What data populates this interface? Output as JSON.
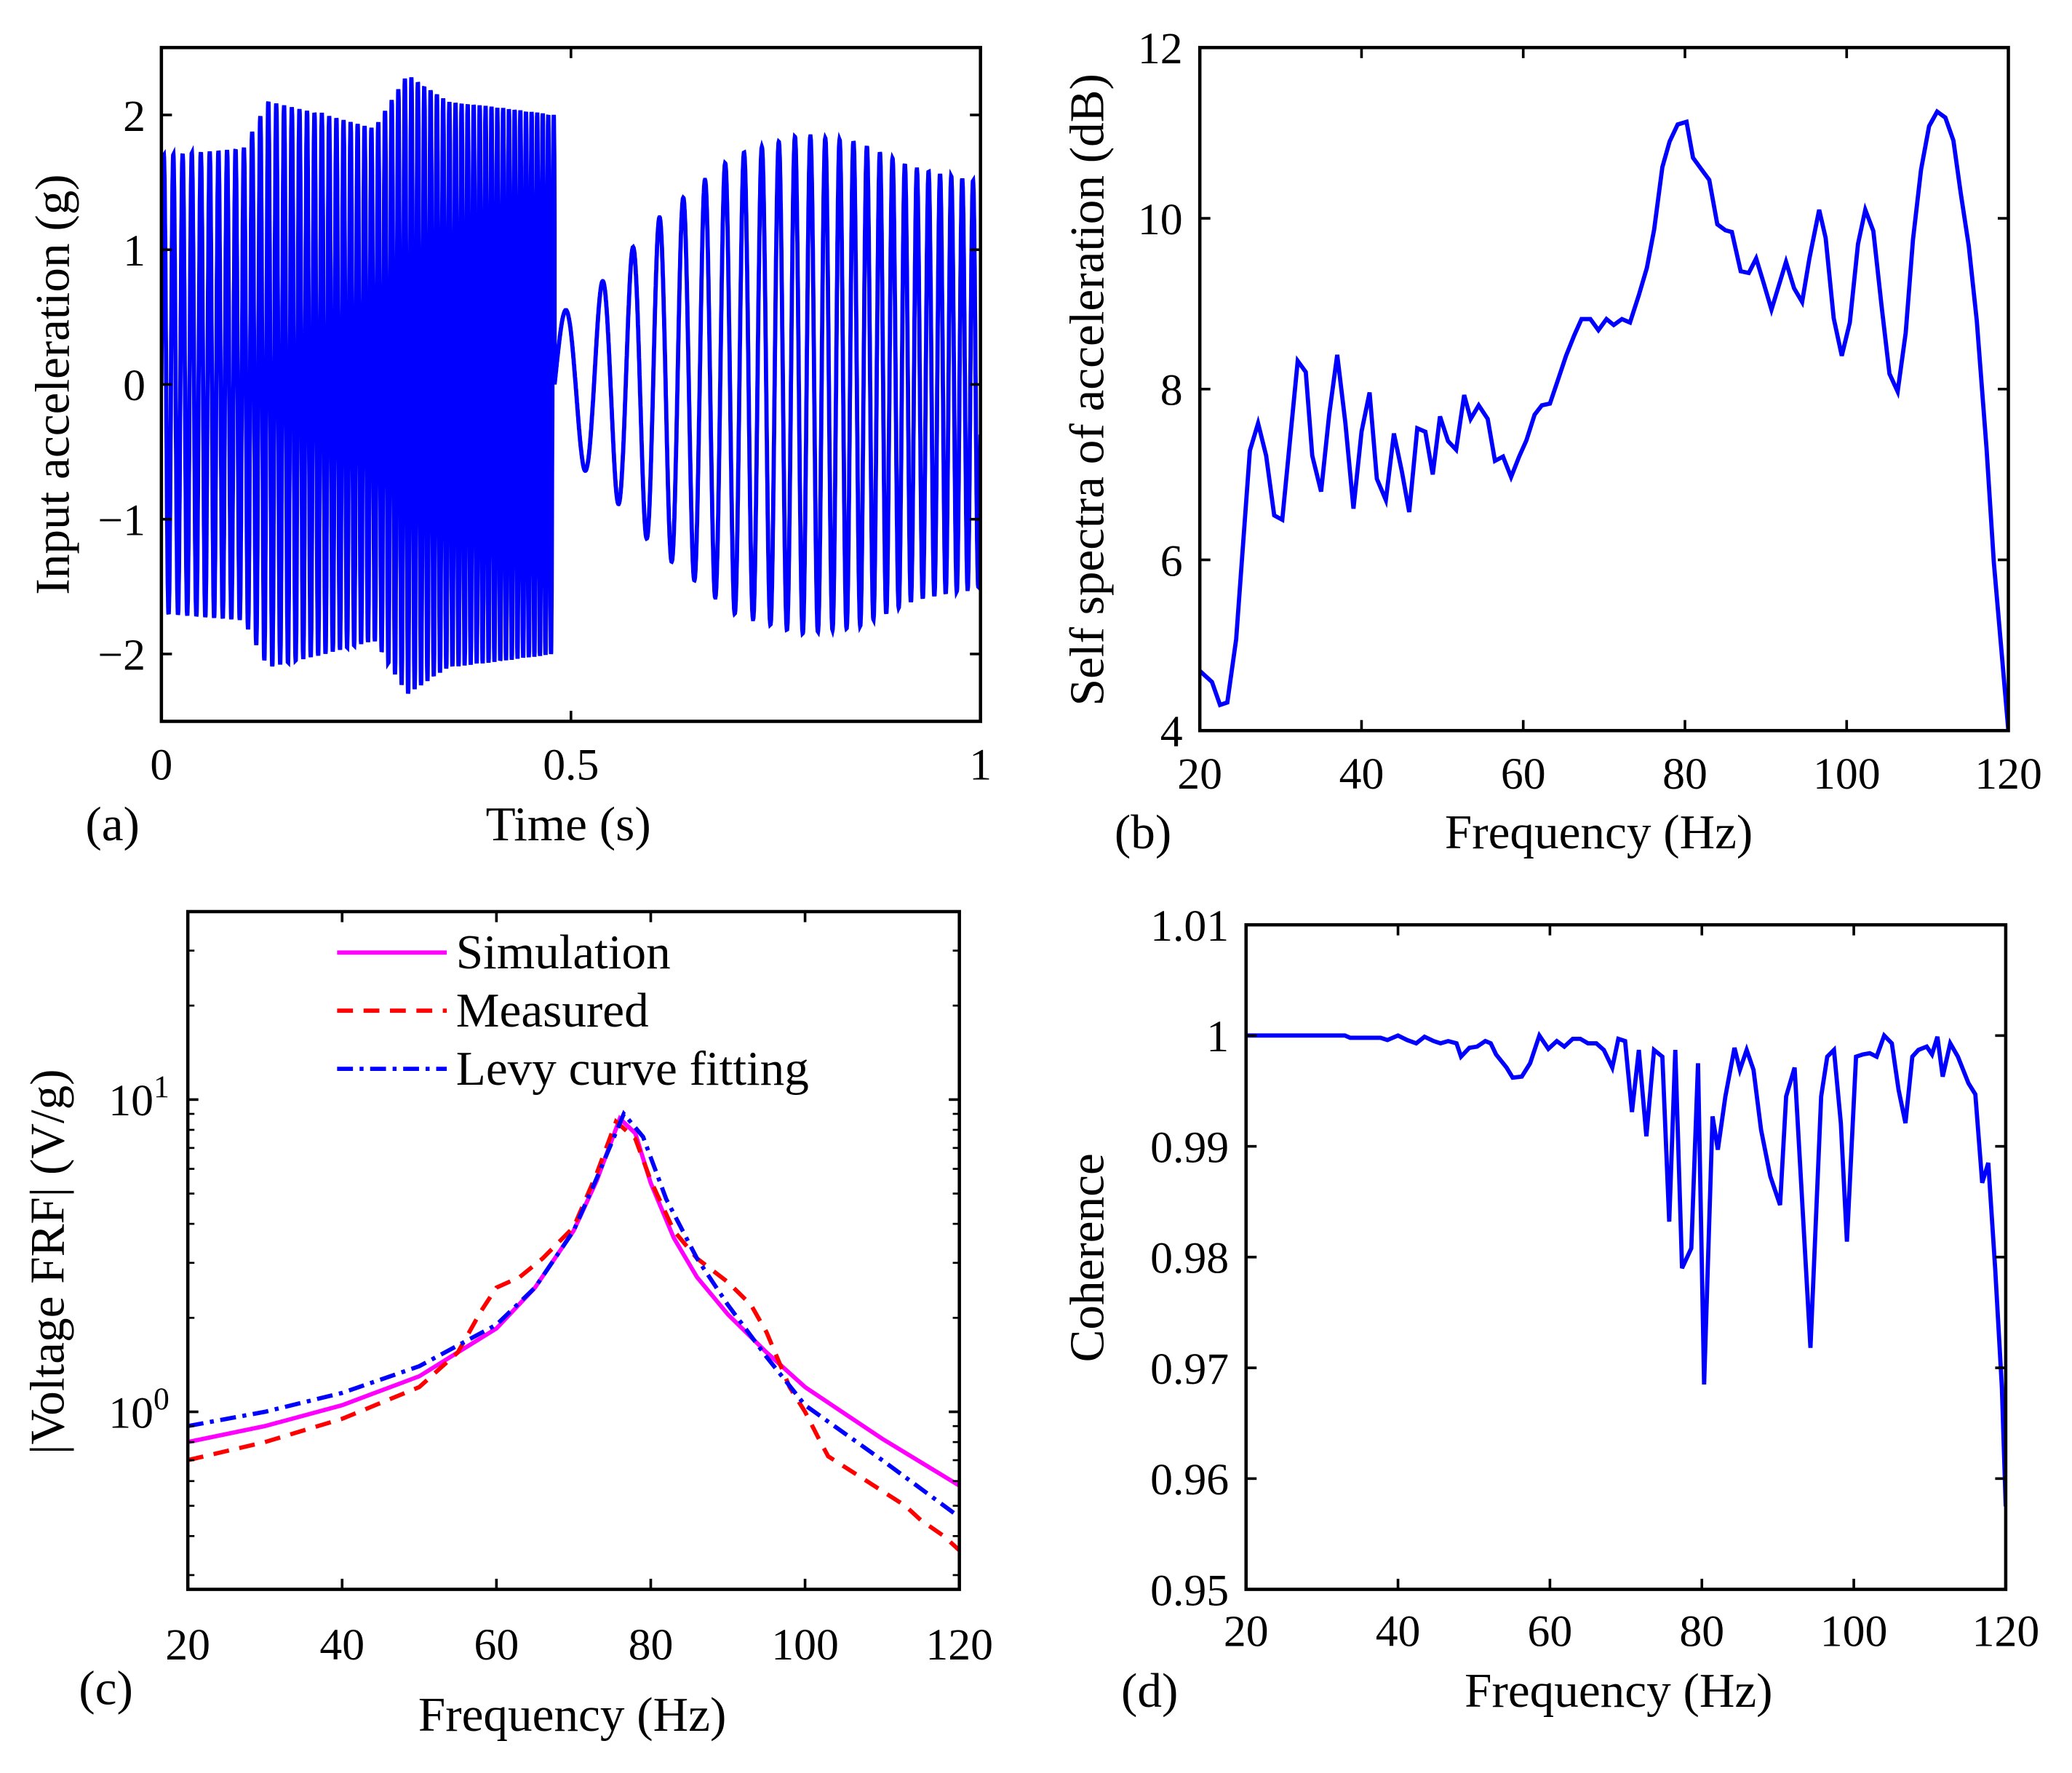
{
  "chart_data": [
    {
      "id": "a",
      "type": "line",
      "panel_label": "(a)",
      "xlabel": "Time (s)",
      "ylabel": "Input acceleration (g)",
      "xlim": [
        0,
        1
      ],
      "ylim": [
        -2.5,
        2.5
      ],
      "xticks": [
        0,
        0.5,
        1
      ],
      "xtick_labels": [
        "0",
        "0.5",
        "1"
      ],
      "yticks": [
        -2,
        -1,
        0,
        1,
        2
      ],
      "ytick_labels": [
        "−2",
        "−1",
        "0",
        "1",
        "2"
      ],
      "series": [
        {
          "name": "input acceleration",
          "color": "#0000ff",
          "segments": [
            {
              "t": [
                0,
                0.48
              ],
              "freq_hz": [
                85,
                150
              ],
              "envelope_t": [
                0,
                0.1,
                0.13,
                0.2,
                0.26,
                0.3,
                0.35,
                0.42,
                0.48
              ],
              "envelope_g": [
                1.7,
                1.75,
                2.1,
                2.0,
                1.9,
                2.3,
                2.1,
                2.05,
                2.0
              ]
            },
            {
              "t": [
                0.48,
                1
              ],
              "freq_hz": [
                18,
                78
              ],
              "envelope_t": [
                0.48,
                0.52,
                0.56,
                0.6,
                0.65,
                0.7,
                0.78,
                0.85,
                0.92,
                1
              ],
              "envelope_g": [
                0.5,
                0.65,
                0.9,
                1.2,
                1.45,
                1.7,
                1.85,
                1.8,
                1.6,
                1.5
              ]
            }
          ]
        }
      ]
    },
    {
      "id": "b",
      "type": "line",
      "panel_label": "(b)",
      "xlabel": "Frequency (Hz)",
      "ylabel": "Self spectra of acceleration (dB)",
      "xlim": [
        20,
        120
      ],
      "ylim": [
        4,
        12
      ],
      "xticks": [
        20,
        40,
        60,
        80,
        100,
        120
      ],
      "xtick_labels": [
        "20",
        "40",
        "60",
        "80",
        "100",
        "120"
      ],
      "yticks": [
        4,
        6,
        8,
        10,
        12
      ],
      "ytick_labels": [
        "4",
        "6",
        "8",
        "10",
        "12"
      ],
      "series": [
        {
          "name": "self spectra",
          "color": "#0000ff",
          "x": [
            20,
            21.5,
            22.5,
            23.4,
            24.5,
            26.2,
            27.2,
            28.2,
            29.2,
            30.2,
            32.1,
            33.1,
            33.9,
            35,
            36,
            37,
            38,
            39,
            40,
            41,
            41.9,
            43,
            44,
            45,
            45.9,
            46.9,
            47.9,
            48.8,
            49.7,
            50.7,
            51.7,
            52.7,
            53.5,
            54.5,
            55.6,
            56.5,
            57.5,
            58.5,
            59.5,
            60.4,
            61.4,
            62.3,
            63.3,
            64.2,
            65.3,
            66.3,
            67.2,
            68.3,
            69.3,
            70.3,
            71.2,
            72.2,
            73.2,
            74.3,
            75.3,
            76.2,
            77.2,
            78.1,
            79.1,
            80.2,
            81,
            82,
            83,
            84,
            85,
            85.8,
            86.9,
            87.9,
            88.8,
            89.7,
            90.7,
            91.6,
            92.5,
            93.5,
            94.5,
            95.4,
            96.6,
            97.4,
            98.4,
            99.4,
            100.4,
            101.4,
            102.3,
            103.3,
            104.3,
            105.3,
            106.3,
            107.3,
            108.2,
            109.2,
            110.2,
            111.2,
            112.2,
            113.2,
            114.1,
            115.1,
            116.1,
            117.3,
            118.2,
            120
          ],
          "y": [
            4.7,
            4.57,
            4.3,
            4.33,
            5.07,
            7.28,
            7.6,
            7.22,
            6.52,
            6.47,
            8.33,
            8.2,
            7.22,
            6.8,
            7.7,
            8.4,
            7.6,
            6.6,
            7.5,
            7.96,
            6.95,
            6.7,
            7.48,
            7.03,
            6.56,
            7.54,
            7.5,
            7.0,
            7.68,
            7.39,
            7.29,
            7.93,
            7.65,
            7.81,
            7.65,
            7.16,
            7.21,
            6.97,
            7.21,
            7.4,
            7.7,
            7.81,
            7.83,
            8.08,
            8.39,
            8.63,
            8.82,
            8.82,
            8.69,
            8.82,
            8.75,
            8.82,
            8.78,
            9.1,
            9.42,
            9.87,
            10.6,
            10.9,
            11.1,
            11.13,
            10.71,
            10.58,
            10.45,
            9.93,
            9.86,
            9.84,
            9.38,
            9.36,
            9.53,
            9.25,
            8.93,
            9.21,
            9.49,
            9.18,
            9.02,
            9.53,
            10.1,
            9.77,
            8.83,
            8.39,
            8.78,
            9.7,
            10.1,
            9.85,
            8.99,
            8.18,
            7.97,
            8.66,
            9.75,
            10.57,
            11.08,
            11.25,
            11.18,
            10.91,
            10.3,
            9.68,
            8.8,
            7.3,
            5.97,
            4.0
          ]
        }
      ]
    },
    {
      "id": "c",
      "type": "line",
      "panel_label": "(c)",
      "xlabel": "Frequency (Hz)",
      "ylabel": "|Voltage FRF| (V/g)",
      "yscale": "log",
      "xlim": [
        20,
        120
      ],
      "ylim": [
        0.27,
        40
      ],
      "xticks": [
        20,
        40,
        60,
        80,
        100,
        120
      ],
      "xtick_labels": [
        "20",
        "40",
        "60",
        "80",
        "100",
        "120"
      ],
      "yticks": [
        1,
        10
      ],
      "ytick_labels": [
        {
          "base": "10",
          "exp": "0"
        },
        {
          "base": "10",
          "exp": "1"
        }
      ],
      "legend": {
        "position": "top-left",
        "entries": [
          "Simulation",
          "Measured",
          "Levy curve fitting"
        ]
      },
      "series": [
        {
          "name": "Simulation",
          "color": "#ff00ff",
          "style": "solid",
          "x": [
            20,
            30,
            40,
            50,
            60,
            65,
            70,
            73,
            76,
            78,
            80,
            83,
            86,
            90,
            95,
            100,
            110,
            120
          ],
          "y": [
            0.8,
            0.9,
            1.05,
            1.3,
            1.85,
            2.5,
            3.8,
            5.5,
            8.7,
            7.8,
            5.4,
            3.6,
            2.7,
            2.05,
            1.55,
            1.2,
            0.82,
            0.58
          ]
        },
        {
          "name": "Measured",
          "color": "#ff0000",
          "style": "dashed",
          "x": [
            20,
            30,
            40,
            50,
            55,
            58,
            60,
            63,
            66,
            70,
            73,
            75.5,
            78,
            80,
            83,
            86,
            90,
            93,
            95,
            98,
            100,
            102,
            103,
            108,
            113,
            115,
            118,
            120
          ],
          "y": [
            0.7,
            0.8,
            0.95,
            1.2,
            1.55,
            2.1,
            2.5,
            2.7,
            3.1,
            3.9,
            5.8,
            8.5,
            7.5,
            5.5,
            3.8,
            3.1,
            2.6,
            2.2,
            1.8,
            1.2,
            1.0,
            0.8,
            0.72,
            0.6,
            0.5,
            0.45,
            0.4,
            0.36
          ]
        },
        {
          "name": "Levy curve fitting",
          "color": "#0000ff",
          "style": "dashdot",
          "x": [
            20,
            30,
            40,
            50,
            60,
            65,
            70,
            73,
            76.5,
            79,
            82,
            86,
            90,
            95,
            100,
            110,
            120
          ],
          "y": [
            0.9,
            1.0,
            1.15,
            1.4,
            1.9,
            2.5,
            3.8,
            5.6,
            9.0,
            7.6,
            4.8,
            3.1,
            2.2,
            1.5,
            1.05,
            0.7,
            0.46
          ]
        }
      ]
    },
    {
      "id": "d",
      "type": "line",
      "panel_label": "(d)",
      "xlabel": "Frequency (Hz)",
      "ylabel": "Coherence",
      "xlim": [
        20,
        120
      ],
      "ylim": [
        0.95,
        1.01
      ],
      "xticks": [
        20,
        40,
        60,
        80,
        100,
        120
      ],
      "xtick_labels": [
        "20",
        "40",
        "60",
        "80",
        "100",
        "120"
      ],
      "yticks": [
        0.95,
        0.96,
        0.97,
        0.98,
        0.99,
        1.0,
        1.01
      ],
      "ytick_labels": [
        "0.95",
        "0.96",
        "0.97",
        "0.98",
        "0.99",
        "1",
        "1.01"
      ],
      "series": [
        {
          "name": "coherence",
          "color": "#0000ff",
          "x": [
            20,
            33,
            33.7,
            37.7,
            38.6,
            40,
            41.2,
            42.4,
            43.5,
            44.7,
            45.6,
            46.6,
            47.7,
            48.3,
            49.4,
            50.4,
            51.5,
            52.2,
            52.9,
            54.3,
            55.1,
            56.3,
            57.4,
            58.6,
            59.8,
            60.9,
            61.9,
            63,
            64,
            65,
            66.1,
            67.1,
            68.2,
            69,
            69.9,
            70.8,
            71.7,
            72.7,
            73.7,
            74.8,
            75.7,
            76.5,
            77.4,
            78.6,
            79.5,
            80.3,
            81.4,
            82.1,
            83.1,
            84.3,
            85,
            85.9,
            86.8,
            87.8,
            89,
            90.3,
            91.1,
            92.2,
            94.3,
            95.7,
            96.5,
            97.4,
            98.3,
            99.1,
            100.3,
            101.2,
            102.1,
            103,
            104,
            105,
            105.9,
            106.8,
            107.7,
            108.5,
            109.6,
            110.3,
            111,
            111.7,
            112.7,
            113.7,
            115.1,
            116,
            116.9,
            117.7,
            118.6,
            119.5,
            120
          ],
          "y": [
            1.0,
            1.0,
            0.9998,
            0.9998,
            0.9996,
            1.0,
            0.9996,
            0.9993,
            0.9999,
            0.9995,
            0.9993,
            0.9995,
            0.9993,
            0.9981,
            0.9989,
            0.999,
            0.9995,
            0.9993,
            0.9983,
            0.9971,
            0.9962,
            0.9963,
            0.9975,
            1.0,
            0.9988,
            0.9995,
            0.999,
            0.9997,
            0.9997,
            0.9993,
            0.9993,
            0.9987,
            0.9971,
            0.9997,
            0.9995,
            0.9931,
            0.9987,
            0.9909,
            0.9987,
            0.9981,
            0.9832,
            0.9987,
            0.979,
            0.9808,
            0.9975,
            0.9685,
            0.9927,
            0.9897,
            0.9945,
            0.9989,
            0.9969,
            0.9987,
            0.9969,
            0.9915,
            0.9873,
            0.9847,
            0.9945,
            0.9971,
            0.9718,
            0.9945,
            0.9981,
            0.9987,
            0.9921,
            0.9814,
            0.9981,
            0.9983,
            0.9984,
            0.9981,
            1.0,
            0.9993,
            0.9951,
            0.9921,
            0.9981,
            0.9987,
            0.999,
            0.9983,
            0.9999,
            0.9963,
            0.9993,
            0.9981,
            0.9957,
            0.9947,
            0.9867,
            0.9885,
            0.979,
            0.9682,
            0.9575
          ]
        }
      ]
    }
  ]
}
